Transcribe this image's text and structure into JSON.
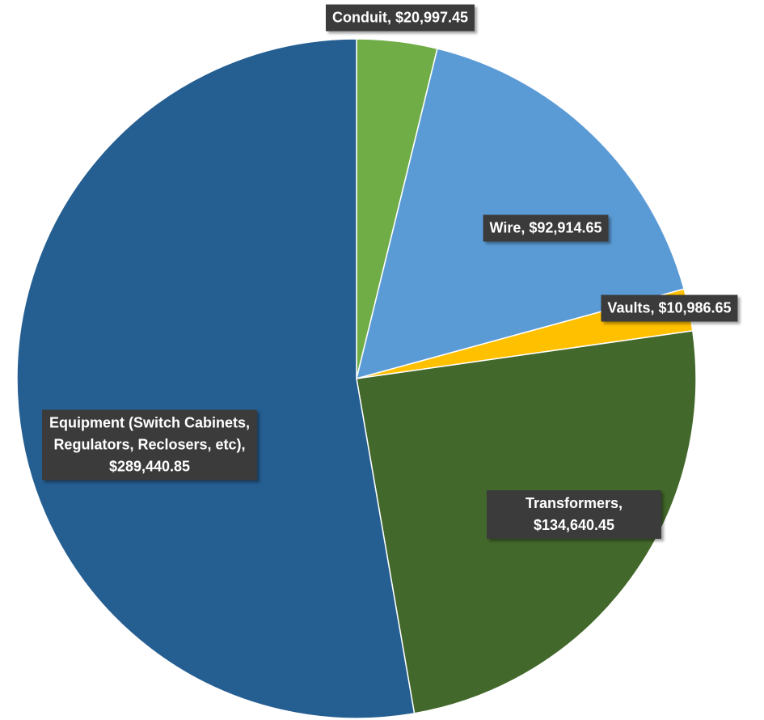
{
  "chart_data": {
    "type": "pie",
    "categories": [
      "Conduit",
      "Wire",
      "Vaults",
      "Transformers",
      "Equipment (Switch Cabinets, Regulators, Reclosers, etc)"
    ],
    "values": [
      20997.45,
      92914.65,
      10986.65,
      134640.45,
      289440.85
    ],
    "value_labels": [
      "$20,997.45",
      "$92,914.65",
      "$10,986.65",
      "$134,640.45",
      "$289,440.85"
    ],
    "label_separator": ", ",
    "colors": [
      "#70ad47",
      "#5b9bd5",
      "#ffc000",
      "#43682b",
      "#255e91"
    ]
  }
}
